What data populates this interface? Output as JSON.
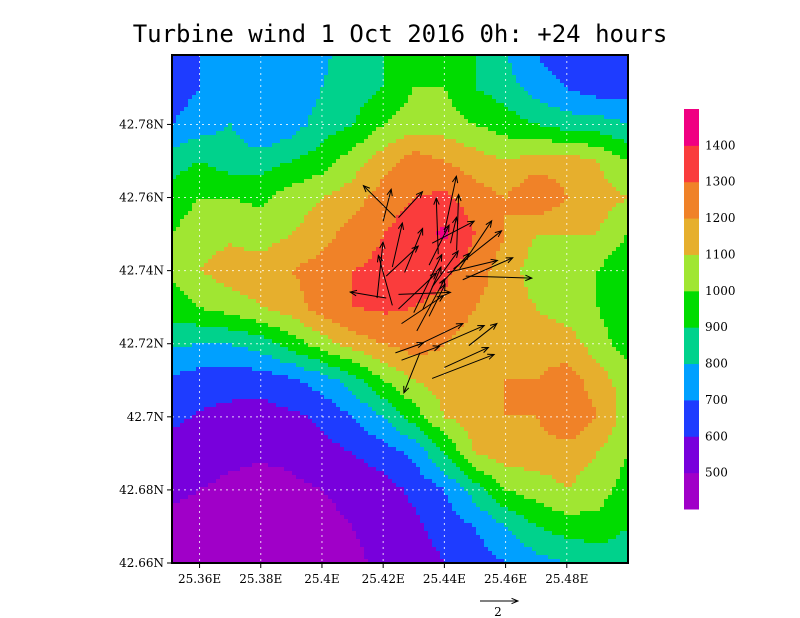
{
  "chart_data": {
    "type": "heatmap",
    "title": "Turbine wind 1 Oct 2016 0h: +24 hours",
    "xlabel": "",
    "ylabel": "",
    "x_ticks": [
      "25.36E",
      "25.38E",
      "25.4E",
      "25.42E",
      "25.44E",
      "25.46E",
      "25.48E"
    ],
    "x_tick_values": [
      25.36,
      25.38,
      25.4,
      25.42,
      25.44,
      25.46,
      25.48
    ],
    "y_ticks": [
      "42.66N",
      "42.68N",
      "42.7N",
      "42.72N",
      "42.74N",
      "42.76N",
      "42.78N"
    ],
    "y_tick_values": [
      42.66,
      42.68,
      42.7,
      42.72,
      42.74,
      42.76,
      42.78
    ],
    "xlim": [
      25.351,
      25.5
    ],
    "ylim": [
      42.66,
      42.799
    ],
    "grid": true,
    "colorbar": {
      "labels": [
        "500",
        "600",
        "700",
        "800",
        "900",
        "1000",
        "1100",
        "1200",
        "1300",
        "1400"
      ],
      "levels": [
        500,
        600,
        700,
        800,
        900,
        1000,
        1100,
        1200,
        1300,
        1400
      ],
      "colors": [
        "#a000c8",
        "#7800dc",
        "#1e3cff",
        "#00a0ff",
        "#00d28c",
        "#00dc00",
        "#a0e632",
        "#e6af2d",
        "#f08228",
        "#fa3c3c",
        "#f00082"
      ]
    },
    "elevation_field": {
      "x": [
        25.351,
        25.36,
        25.37,
        25.38,
        25.39,
        25.4,
        25.41,
        25.42,
        25.43,
        25.44,
        25.45,
        25.46,
        25.47,
        25.48,
        25.49,
        25.5
      ],
      "y": [
        42.66,
        42.67,
        42.68,
        42.69,
        42.7,
        42.71,
        42.72,
        42.73,
        42.74,
        42.75,
        42.76,
        42.77,
        42.78,
        42.79,
        42.799
      ],
      "values": [
        [
          450,
          440,
          430,
          430,
          440,
          460,
          480,
          520,
          550,
          600,
          650,
          700,
          760,
          800,
          830,
          850
        ],
        [
          470,
          460,
          450,
          450,
          460,
          480,
          500,
          540,
          580,
          640,
          700,
          800,
          900,
          950,
          960,
          900
        ],
        [
          520,
          500,
          480,
          470,
          480,
          500,
          520,
          560,
          620,
          700,
          850,
          1000,
          1050,
          1100,
          1050,
          950
        ],
        [
          560,
          540,
          520,
          510,
          520,
          560,
          600,
          650,
          720,
          900,
          1100,
          1150,
          1150,
          1150,
          1100,
          1000
        ],
        [
          620,
          590,
          570,
          560,
          580,
          620,
          700,
          800,
          950,
          1100,
          1150,
          1200,
          1200,
          1300,
          1200,
          1050
        ],
        [
          680,
          650,
          640,
          640,
          680,
          750,
          850,
          1000,
          1100,
          1150,
          1150,
          1200,
          1200,
          1250,
          1150,
          1050
        ],
        [
          820,
          800,
          800,
          850,
          950,
          1050,
          1150,
          1200,
          1250,
          1200,
          1150,
          1150,
          1150,
          1150,
          1050,
          950
        ],
        [
          950,
          1000,
          1050,
          1100,
          1150,
          1250,
          1300,
          1320,
          1300,
          1280,
          1200,
          1150,
          1100,
          1050,
          1000,
          900
        ],
        [
          1020,
          1100,
          1150,
          1150,
          1200,
          1250,
          1300,
          1320,
          1330,
          1320,
          1250,
          1150,
          1050,
          1000,
          1000,
          900
        ],
        [
          1000,
          1050,
          1080,
          1050,
          1100,
          1150,
          1250,
          1300,
          1350,
          1420,
          1300,
          1200,
          1100,
          1100,
          1100,
          1000
        ],
        [
          950,
          1000,
          1000,
          980,
          1050,
          1100,
          1150,
          1250,
          1300,
          1320,
          1250,
          1200,
          1300,
          1200,
          1150,
          1100
        ],
        [
          850,
          900,
          850,
          850,
          900,
          950,
          1050,
          1150,
          1250,
          1200,
          1150,
          1100,
          1150,
          1150,
          1100,
          1000
        ],
        [
          700,
          750,
          800,
          700,
          750,
          850,
          900,
          1000,
          1050,
          1050,
          1000,
          950,
          900,
          850,
          850,
          800
        ],
        [
          650,
          700,
          750,
          700,
          700,
          800,
          850,
          900,
          1000,
          1000,
          900,
          850,
          750,
          700,
          650,
          650
        ],
        [
          700,
          700,
          720,
          700,
          720,
          780,
          850,
          900,
          950,
          950,
          900,
          800,
          700,
          650,
          650,
          650
        ]
      ]
    },
    "wind_vectors": {
      "reference_label": "2",
      "reference_length": 2,
      "vectors": [
        {
          "x": 25.421,
          "y": 42.7325,
          "u": -1.8,
          "v": 0.3
        },
        {
          "x": 25.418,
          "y": 42.7325,
          "u": 0.3,
          "v": 2.8
        },
        {
          "x": 25.423,
          "y": 42.7305,
          "u": -0.7,
          "v": 2.5
        },
        {
          "x": 25.423,
          "y": 42.741,
          "u": 0.5,
          "v": 2.2
        },
        {
          "x": 25.42,
          "y": 42.7535,
          "u": 0.4,
          "v": 1.6
        },
        {
          "x": 25.425,
          "y": 42.7545,
          "u": 1.2,
          "v": 1.3
        },
        {
          "x": 25.424,
          "y": 42.7545,
          "u": -1.6,
          "v": 1.6
        },
        {
          "x": 25.421,
          "y": 42.7385,
          "u": 1.6,
          "v": 1.5
        },
        {
          "x": 25.427,
          "y": 42.7395,
          "u": 0.9,
          "v": 2.2
        },
        {
          "x": 25.438,
          "y": 42.7445,
          "u": -0.1,
          "v": 2.8
        },
        {
          "x": 25.44,
          "y": 42.7505,
          "u": 0.6,
          "v": 2.8
        },
        {
          "x": 25.444,
          "y": 42.7455,
          "u": 0.1,
          "v": 2.8
        },
        {
          "x": 25.435,
          "y": 42.7415,
          "u": 1.0,
          "v": 2.0
        },
        {
          "x": 25.425,
          "y": 42.7295,
          "u": 1.9,
          "v": 1.8
        },
        {
          "x": 25.426,
          "y": 42.7255,
          "u": 2.1,
          "v": 1.4
        },
        {
          "x": 25.431,
          "y": 42.7235,
          "u": 1.4,
          "v": 2.6
        },
        {
          "x": 25.433,
          "y": 42.7295,
          "u": 0.9,
          "v": 2.1
        },
        {
          "x": 25.436,
          "y": 42.7355,
          "u": 1.3,
          "v": 1.8
        },
        {
          "x": 25.436,
          "y": 42.7475,
          "u": 2.1,
          "v": 1.1
        },
        {
          "x": 25.439,
          "y": 42.7365,
          "u": 1.4,
          "v": 1.5
        },
        {
          "x": 25.441,
          "y": 42.7395,
          "u": 2.5,
          "v": 0.6
        },
        {
          "x": 25.435,
          "y": 42.7275,
          "u": 0.8,
          "v": 1.6
        },
        {
          "x": 25.425,
          "y": 42.7335,
          "u": 2.6,
          "v": 0.1
        },
        {
          "x": 25.424,
          "y": 42.7175,
          "u": 1.4,
          "v": 0.5
        },
        {
          "x": 25.426,
          "y": 42.7155,
          "u": 1.9,
          "v": 0.7
        },
        {
          "x": 25.431,
          "y": 42.7195,
          "u": 2.3,
          "v": 1.1
        },
        {
          "x": 25.438,
          "y": 42.7195,
          "u": 2.3,
          "v": 1.0
        },
        {
          "x": 25.446,
          "y": 42.7375,
          "u": 2.5,
          "v": 1.1
        },
        {
          "x": 25.443,
          "y": 42.7405,
          "u": 2.4,
          "v": 1.9
        },
        {
          "x": 25.445,
          "y": 42.7405,
          "u": 1.6,
          "v": 2.4
        },
        {
          "x": 25.447,
          "y": 42.7385,
          "u": 3.3,
          "v": -0.1
        },
        {
          "x": 25.44,
          "y": 42.7135,
          "u": 2.2,
          "v": 1.0
        },
        {
          "x": 25.436,
          "y": 42.7105,
          "u": 3.1,
          "v": 1.2
        },
        {
          "x": 25.448,
          "y": 42.7195,
          "u": 1.4,
          "v": 1.1
        },
        {
          "x": 25.432,
          "y": 42.7175,
          "u": -0.8,
          "v": -2.0
        },
        {
          "x": 25.43,
          "y": 42.7285,
          "u": 1.4,
          "v": 2.9
        },
        {
          "x": 25.442,
          "y": 42.7475,
          "u": 0.3,
          "v": 1.3
        }
      ]
    }
  }
}
